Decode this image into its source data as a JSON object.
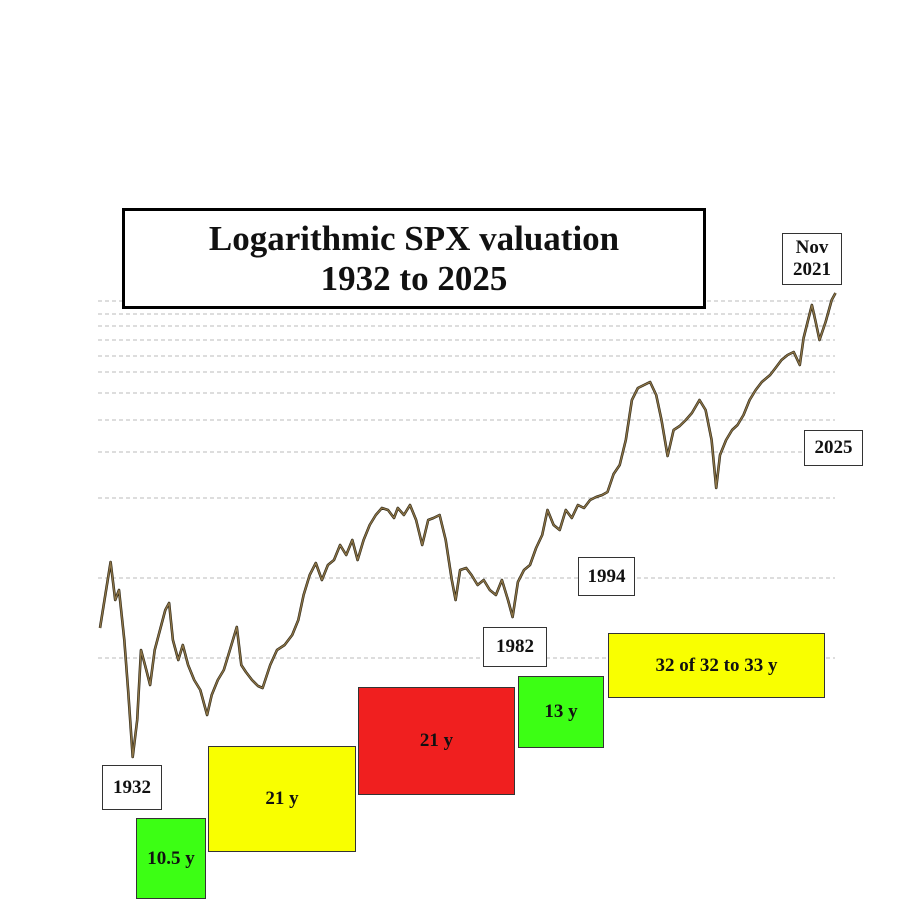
{
  "chart_data": {
    "type": "line",
    "title": "Logarithmic SPX valuation",
    "subtitle": "1932 to 2025",
    "color": "#8b7346",
    "x": [
      1928.0,
      1928.8,
      1929.4,
      1930.0,
      1930.5,
      1931.2,
      1931.7,
      1932.3,
      1932.9,
      1933.4,
      1934.1,
      1934.6,
      1935.2,
      1935.9,
      1936.6,
      1937.1,
      1937.6,
      1938.3,
      1938.9,
      1939.6,
      1940.4,
      1941.2,
      1942.1,
      1942.7,
      1943.5,
      1944.3,
      1945.1,
      1946.0,
      1946.6,
      1947.2,
      1948.0,
      1948.8,
      1949.4,
      1950.4,
      1951.3,
      1952.3,
      1953.3,
      1954.1,
      1954.8,
      1955.6,
      1956.4,
      1957.2,
      1958.0,
      1958.8,
      1959.6,
      1960.4,
      1961.2,
      1961.9,
      1962.7,
      1963.5,
      1964.3,
      1965.1,
      1965.9,
      1966.7,
      1967.2,
      1968.0,
      1968.8,
      1969.6,
      1970.4,
      1971.2,
      1971.9,
      1972.7,
      1973.5,
      1974.3,
      1974.8,
      1975.4,
      1976.2,
      1976.9,
      1977.7,
      1978.5,
      1979.3,
      1980.1,
      1980.9,
      1981.7,
      1982.3,
      1983.0,
      1983.8,
      1984.6,
      1985.4,
      1986.2,
      1986.9,
      1987.7,
      1988.5,
      1989.3,
      1990.1,
      1990.9,
      1991.7,
      1992.5,
      1993.3,
      1994.1,
      1994.8,
      1995.6,
      1996.4,
      1997.2,
      1998.0,
      1998.8,
      1999.6,
      2000.4,
      2001.2,
      2001.9,
      2002.7,
      2003.5,
      2004.3,
      2005.1,
      2005.9,
      2006.9,
      2007.7,
      2008.5,
      2009.1,
      2009.6,
      2010.4,
      2011.2,
      2011.9,
      2012.7,
      2013.5,
      2014.3,
      2015.1,
      2016.2,
      2016.9,
      2017.7,
      2018.5,
      2019.3,
      2020.1,
      2020.6,
      2021.2,
      2021.7,
      2022.2,
      2022.7,
      2023.5,
      2024.3,
      2024.8
    ],
    "values": [
      142,
      180,
      208,
      170,
      180,
      130,
      80,
      13,
      50,
      120,
      100,
      85,
      120,
      140,
      160,
      167,
      130,
      110,
      125,
      105,
      90,
      80,
      55,
      75,
      90,
      100,
      120,
      143,
      105,
      98,
      90,
      84,
      82,
      105,
      120,
      125,
      135,
      150,
      175,
      195,
      207,
      190,
      205,
      210,
      225,
      215,
      230,
      210,
      230,
      245,
      255,
      262,
      260,
      252,
      262,
      255,
      265,
      250,
      225,
      250,
      252,
      255,
      230,
      190,
      170,
      200,
      202,
      195,
      185,
      190,
      180,
      175,
      190,
      170,
      153,
      188,
      200,
      205,
      222,
      235,
      260,
      245,
      240,
      260,
      252,
      265,
      262,
      270,
      273,
      275,
      278,
      296,
      305,
      330,
      370,
      382,
      385,
      388,
      375,
      350,
      314,
      340,
      344,
      350,
      357,
      370,
      360,
      330,
      282,
      315,
      330,
      340,
      345,
      355,
      370,
      380,
      388,
      395,
      402,
      410,
      415,
      418,
      405,
      432,
      450,
      465,
      448,
      430,
      448,
      470,
      477
    ],
    "xlim": [
      1928,
      2025
    ],
    "ylim": [
      0,
      480
    ],
    "gridlines": [
      469,
      456,
      444,
      430,
      414,
      398,
      377,
      350,
      318,
      272,
      192,
      112
    ],
    "annotations": [
      "1932",
      "1982",
      "1994",
      "Nov 2021",
      "2025"
    ],
    "periods": [
      {
        "label": "10.5 y",
        "color": "#3cff14"
      },
      {
        "label": "21 y",
        "color": "#f9ff00"
      },
      {
        "label": "21 y",
        "color": "#f01f1f"
      },
      {
        "label": "13 y",
        "color": "#3cff14"
      },
      {
        "label": "32 of 32 to 33 y",
        "color": "#f9ff00"
      }
    ]
  }
}
